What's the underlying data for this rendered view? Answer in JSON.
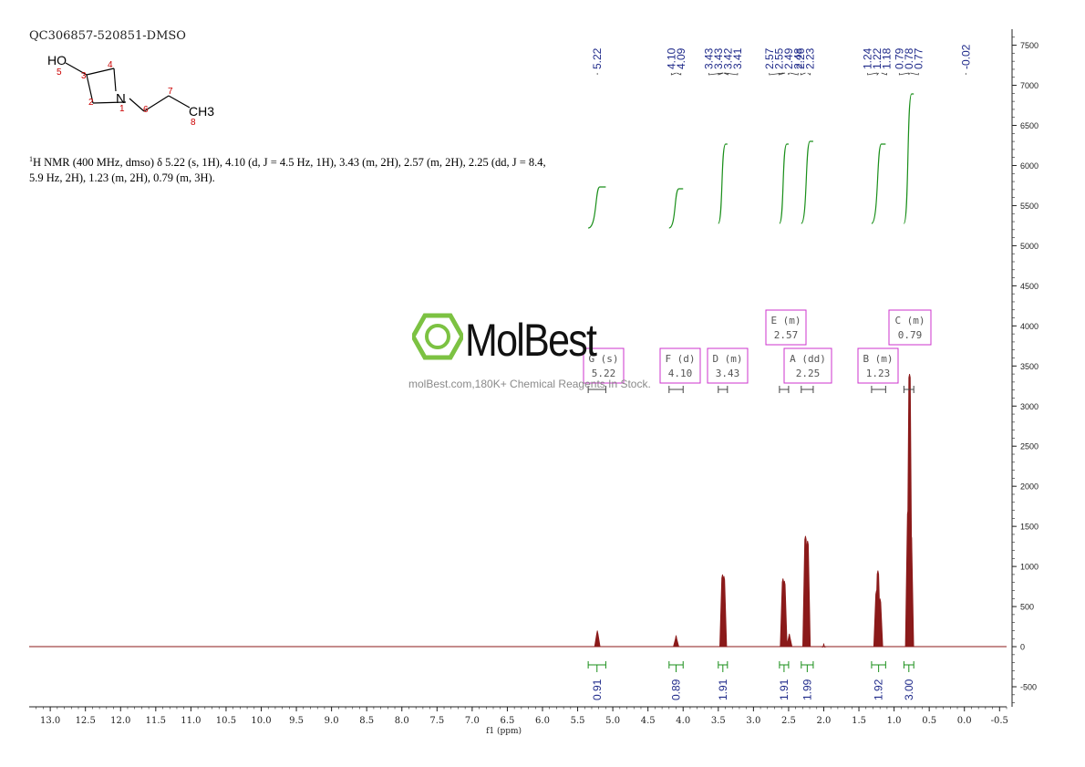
{
  "header": {
    "sample_id": "QC306857-520851-DMSO",
    "nmr_text_nucleus": "1",
    "nmr_text": "H NMR (400 MHz, dmso) δ 5.22 (s, 1H), 4.10 (d, J = 4.5 Hz, 1H), 3.43 (m, 2H), 2.57 (m, 2H), 2.25 (dd, J = 8.4, 5.9 Hz, 2H), 1.23 (m, 2H), 0.79 (m, 3H)."
  },
  "structure": {
    "atom_labels": [
      "HO",
      "N",
      "CH3"
    ],
    "locants": [
      "1",
      "2",
      "3",
      "4",
      "5",
      "6",
      "7",
      "8"
    ]
  },
  "watermark": {
    "name": "MolBest",
    "tagline": "molBest.com,180K+ Chemical Reagents In Stock."
  },
  "colors": {
    "spectrum": "#8b1a1a",
    "peak_label": "#1f2a8a",
    "integral": "#1a8f1a",
    "multiplet_box": "#cc33cc",
    "watermark_green": "#7cc242"
  },
  "chart_data": {
    "type": "line",
    "xlabel": "f1 (ppm)",
    "x_range": [
      13.3,
      -0.6
    ],
    "x_reversed": true,
    "y_range": [
      -750,
      7700
    ],
    "x_ticks": [
      "13.0",
      "12.5",
      "12.0",
      "11.5",
      "11.0",
      "10.5",
      "10.0",
      "9.5",
      "9.0",
      "8.5",
      "8.0",
      "7.5",
      "7.0",
      "6.5",
      "6.0",
      "5.5",
      "5.0",
      "4.5",
      "4.0",
      "3.5",
      "3.0",
      "2.5",
      "2.0",
      "1.5",
      "1.0",
      "0.5",
      "0.0",
      "-0.5"
    ],
    "y_ticks": [
      "-500",
      "0",
      "500",
      "1000",
      "1500",
      "2000",
      "2500",
      "3000",
      "3500",
      "4000",
      "4500",
      "5000",
      "5500",
      "6000",
      "6500",
      "7000",
      "7500"
    ],
    "peak_labels": [
      {
        "ppm": 5.22,
        "text": "5.22"
      },
      {
        "ppm": 4.1,
        "text": "4.10"
      },
      {
        "ppm": 4.09,
        "text": "4.09"
      },
      {
        "ppm": 3.43,
        "text": "3.43"
      },
      {
        "ppm": 3.43,
        "text": "3.43"
      },
      {
        "ppm": 3.42,
        "text": "3.42"
      },
      {
        "ppm": 3.41,
        "text": "3.41"
      },
      {
        "ppm": 2.57,
        "text": "2.57"
      },
      {
        "ppm": 2.55,
        "text": "2.55"
      },
      {
        "ppm": 2.49,
        "text": "2.49"
      },
      {
        "ppm": 2.48,
        "text": "2.48"
      },
      {
        "ppm": 2.26,
        "text": "2.26"
      },
      {
        "ppm": 2.23,
        "text": "2.23"
      },
      {
        "ppm": 1.24,
        "text": "1.24"
      },
      {
        "ppm": 1.22,
        "text": "1.22"
      },
      {
        "ppm": 1.18,
        "text": "1.18"
      },
      {
        "ppm": 0.79,
        "text": "0.79"
      },
      {
        "ppm": 0.78,
        "text": "0.78"
      },
      {
        "ppm": 0.77,
        "text": "0.77"
      },
      {
        "ppm": -0.02,
        "text": "-0.02"
      }
    ],
    "peaks": [
      {
        "ppm": 5.22,
        "height": 200
      },
      {
        "ppm": 4.1,
        "height": 140
      },
      {
        "ppm": 3.44,
        "height": 900
      },
      {
        "ppm": 3.42,
        "height": 880
      },
      {
        "ppm": 2.58,
        "height": 850
      },
      {
        "ppm": 2.56,
        "height": 820
      },
      {
        "ppm": 2.49,
        "height": 160
      },
      {
        "ppm": 2.26,
        "height": 1380
      },
      {
        "ppm": 2.23,
        "height": 1320
      },
      {
        "ppm": 2.0,
        "height": 40
      },
      {
        "ppm": 1.25,
        "height": 700
      },
      {
        "ppm": 1.23,
        "height": 950
      },
      {
        "ppm": 1.2,
        "height": 600
      },
      {
        "ppm": 0.8,
        "height": 1700
      },
      {
        "ppm": 0.78,
        "height": 3400
      },
      {
        "ppm": 0.76,
        "height": 1400
      }
    ],
    "multiplets": [
      {
        "letter": "G",
        "type": "(s)",
        "shift": "5.22",
        "from": 5.35,
        "to": 5.1
      },
      {
        "letter": "F",
        "type": "(d)",
        "shift": "4.10",
        "from": 4.2,
        "to": 4.0
      },
      {
        "letter": "D",
        "type": "(m)",
        "shift": "3.43",
        "from": 3.5,
        "to": 3.37
      },
      {
        "letter": "E",
        "type": "(m)",
        "shift": "2.57",
        "from": 2.63,
        "to": 2.5
      },
      {
        "letter": "A",
        "type": "(dd)",
        "shift": "2.25",
        "from": 2.32,
        "to": 2.15
      },
      {
        "letter": "B",
        "type": "(m)",
        "shift": "1.23",
        "from": 1.32,
        "to": 1.12
      },
      {
        "letter": "C",
        "type": "(m)",
        "shift": "0.79",
        "from": 0.86,
        "to": 0.72
      }
    ],
    "integrals": [
      {
        "from": 5.35,
        "to": 5.1,
        "value": "0.91"
      },
      {
        "from": 4.2,
        "to": 4.0,
        "value": "0.89"
      },
      {
        "from": 3.5,
        "to": 3.37,
        "value": "1.91"
      },
      {
        "from": 2.63,
        "to": 2.5,
        "value": "1.91"
      },
      {
        "from": 2.32,
        "to": 2.15,
        "value": "1.99"
      },
      {
        "from": 1.32,
        "to": 1.12,
        "value": "1.92"
      },
      {
        "from": 0.86,
        "to": 0.72,
        "value": "3.00"
      }
    ]
  }
}
